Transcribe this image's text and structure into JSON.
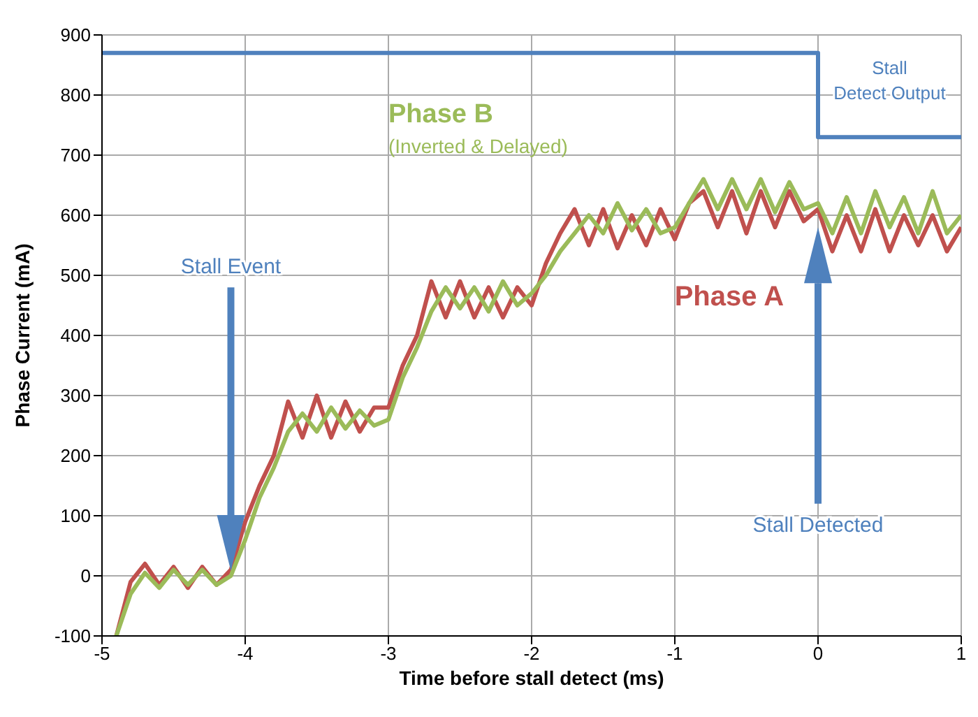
{
  "chart_data": {
    "type": "line",
    "xlabel": "Time before stall  detect (ms)",
    "ylabel": "Phase Current (mA)",
    "xlim": [
      -5,
      1
    ],
    "xticks": [
      -5,
      -4,
      -3,
      -2,
      -1,
      0,
      1
    ],
    "ylim": [
      -100,
      900
    ],
    "yticks": [
      -100,
      0,
      100,
      200,
      300,
      400,
      500,
      600,
      700,
      800,
      900
    ],
    "grid": true,
    "x": [
      -4.9,
      -4.8,
      -4.7,
      -4.6,
      -4.5,
      -4.4,
      -4.3,
      -4.2,
      -4.1,
      -4.0,
      -3.9,
      -3.8,
      -3.7,
      -3.6,
      -3.5,
      -3.4,
      -3.3,
      -3.2,
      -3.1,
      -3.0,
      -2.9,
      -2.8,
      -2.7,
      -2.6,
      -2.5,
      -2.4,
      -2.3,
      -2.2,
      -2.1,
      -2.0,
      -1.9,
      -1.8,
      -1.7,
      -1.6,
      -1.5,
      -1.4,
      -1.3,
      -1.2,
      -1.1,
      -1.0,
      -0.9,
      -0.8,
      -0.7,
      -0.6,
      -0.5,
      -0.4,
      -0.3,
      -0.2,
      -0.1,
      0.0,
      0.1,
      0.2,
      0.3,
      0.4,
      0.5,
      0.6,
      0.7,
      0.8,
      0.9,
      1.0
    ],
    "series": [
      {
        "name": "Phase A",
        "color": "#c0504d",
        "values": [
          -100,
          -10,
          20,
          -15,
          15,
          -20,
          15,
          -15,
          10,
          90,
          150,
          200,
          290,
          230,
          300,
          230,
          290,
          240,
          280,
          280,
          350,
          400,
          490,
          430,
          490,
          430,
          480,
          430,
          480,
          450,
          520,
          570,
          610,
          550,
          610,
          545,
          600,
          550,
          610,
          560,
          620,
          640,
          580,
          640,
          570,
          640,
          580,
          640,
          590,
          610,
          540,
          600,
          540,
          610,
          540,
          600,
          550,
          600,
          540,
          580
        ]
      },
      {
        "name": "Phase B",
        "color": "#9bbb59",
        "values": [
          -100,
          -30,
          5,
          -20,
          10,
          -15,
          10,
          -15,
          0,
          60,
          130,
          180,
          240,
          270,
          240,
          280,
          245,
          275,
          250,
          260,
          330,
          380,
          440,
          480,
          445,
          480,
          440,
          490,
          450,
          470,
          500,
          540,
          570,
          600,
          570,
          620,
          575,
          610,
          570,
          580,
          620,
          660,
          610,
          660,
          610,
          660,
          605,
          655,
          610,
          620,
          570,
          630,
          570,
          640,
          580,
          630,
          570,
          640,
          570,
          600
        ]
      },
      {
        "name": "Stall Detect Output",
        "color": "#4f81bd",
        "x": [
          -5,
          0,
          0,
          1
        ],
        "values": [
          870,
          870,
          730,
          730
        ]
      }
    ],
    "annotations": [
      "Stall Event",
      "Stall Detected",
      "(Inverted & Delayed)"
    ]
  }
}
